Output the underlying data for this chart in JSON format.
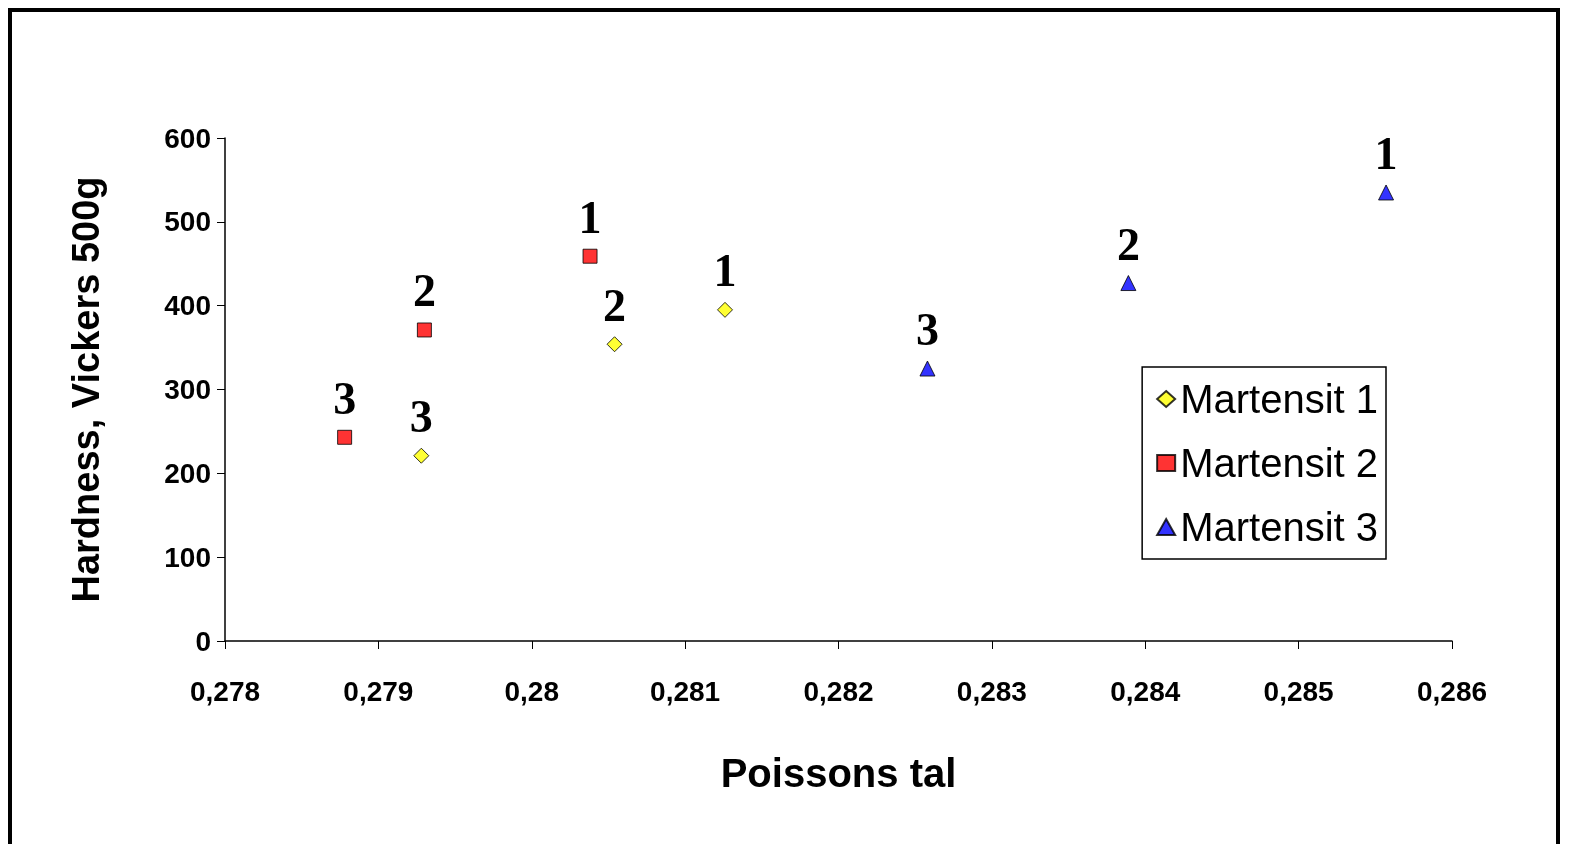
{
  "chart_data": {
    "type": "scatter",
    "xlabel": "Poissons tal",
    "ylabel": "Hardness, Vickers 500g",
    "xlim": [
      0.278,
      0.286
    ],
    "xticks": [
      {
        "value": 0.278,
        "label": "0,278"
      },
      {
        "value": 0.279,
        "label": "0,279"
      },
      {
        "value": 0.28,
        "label": "0,28"
      },
      {
        "value": 0.281,
        "label": "0,281"
      },
      {
        "value": 0.282,
        "label": "0,282"
      },
      {
        "value": 0.283,
        "label": "0,283"
      },
      {
        "value": 0.284,
        "label": "0,284"
      },
      {
        "value": 0.285,
        "label": "0,285"
      },
      {
        "value": 0.286,
        "label": "0,286"
      }
    ],
    "annotations": [
      {
        "text": "1",
        "x": 0.28126,
        "y": 395
      },
      {
        "text": "2",
        "x": 0.28054,
        "y": 354
      },
      {
        "text": "3",
        "x": 0.27928,
        "y": 221
      },
      {
        "text": "1",
        "x": 0.28038,
        "y": 459
      },
      {
        "text": "2",
        "x": 0.2793,
        "y": 371
      },
      {
        "text": "3",
        "x": 0.27878,
        "y": 243
      },
      {
        "text": "1",
        "x": 0.28557,
        "y": 535
      },
      {
        "text": "2",
        "x": 0.28389,
        "y": 427
      },
      {
        "text": "3",
        "x": 0.28258,
        "y": 325
      }
    ],
    "ylim": [
      0,
      600
    ],
    "yticks": [
      0,
      100,
      200,
      300,
      400,
      500,
      600
    ],
    "grid": false,
    "legend": "right",
    "series": [
      {
        "name": "Martensit 1",
        "color": "#ffff00",
        "marker": "diamond",
        "x": [
          0.28126,
          0.28054,
          0.27928
        ],
        "values": [
          395,
          354,
          221
        ]
      },
      {
        "name": "Martensit 2",
        "color": "#ff0000",
        "marker": "square",
        "x": [
          0.28038,
          0.2793,
          0.27878
        ],
        "values": [
          459,
          371,
          243
        ]
      },
      {
        "name": "Martensit 3",
        "color": "#0000ff",
        "marker": "triangle",
        "x": [
          0.28557,
          0.28389,
          0.28258
        ],
        "values": [
          535,
          427,
          325
        ]
      }
    ]
  }
}
